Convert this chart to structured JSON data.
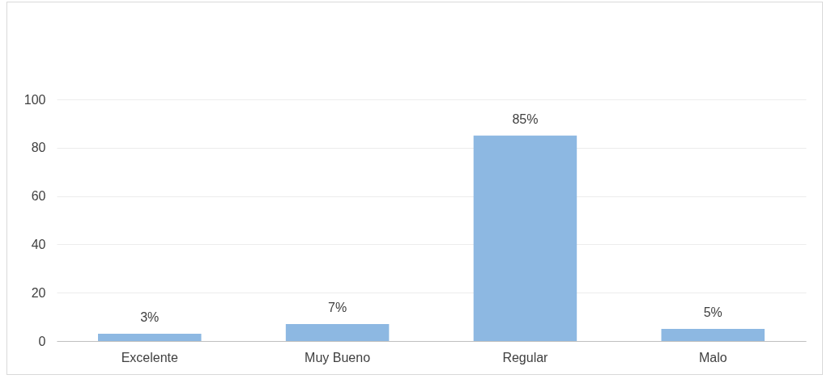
{
  "chart_data": {
    "type": "bar",
    "categories": [
      "Excelente",
      "Muy Bueno",
      "Regular",
      "Malo"
    ],
    "values": [
      3,
      7,
      85,
      5
    ],
    "value_labels": [
      "3%",
      "7%",
      "85%",
      "5%"
    ],
    "color": "#8db8e2",
    "ylim": [
      0,
      100
    ],
    "yticks": [
      0,
      20,
      40,
      60,
      80,
      100
    ],
    "grid": "y"
  }
}
